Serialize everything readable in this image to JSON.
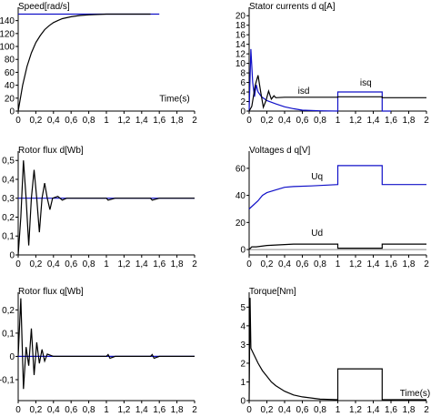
{
  "chart_data": [
    {
      "type": "line",
      "title": "Speed[rad/s]",
      "annotations": [
        {
          "text": "Time(s)",
          "x": 1.6,
          "y": 15
        }
      ],
      "xlim": [
        0,
        2
      ],
      "ylim": [
        0,
        155
      ],
      "x_ticks": [
        "0",
        "0,2",
        "0,4",
        "0,6",
        "0,8",
        "1",
        "1,2",
        "1,4",
        "1,6",
        "1,8",
        "2"
      ],
      "y_ticks": [
        {
          "v": 0,
          "label": "0"
        },
        {
          "v": 20,
          "label": "20"
        },
        {
          "v": 40,
          "label": "40"
        },
        {
          "v": 60,
          "label": "60"
        },
        {
          "v": 80,
          "label": "80"
        },
        {
          "v": 100,
          "label": "100"
        },
        {
          "v": 120,
          "label": "120"
        },
        {
          "v": 140,
          "label": "140"
        }
      ],
      "series": [
        {
          "color": "#1010c8",
          "points": [
            [
              0,
              150
            ],
            [
              1.6,
              150
            ]
          ]
        },
        {
          "color": "#000000",
          "points": [
            [
              0,
              0
            ],
            [
              0.05,
              40
            ],
            [
              0.1,
              69
            ],
            [
              0.15,
              90
            ],
            [
              0.2,
              106
            ],
            [
              0.25,
              117
            ],
            [
              0.3,
              126
            ],
            [
              0.35,
              132
            ],
            [
              0.4,
              137
            ],
            [
              0.45,
              140
            ],
            [
              0.5,
              143
            ],
            [
              0.6,
              146
            ],
            [
              0.7,
              148
            ],
            [
              0.8,
              149
            ],
            [
              1.0,
              150
            ],
            [
              1.5,
              150
            ]
          ]
        }
      ]
    },
    {
      "type": "line",
      "title": "Stator currents d q[A]",
      "annotations": [
        {
          "text": "isd",
          "x": 0.55,
          "y": 3.6
        },
        {
          "text": "isq",
          "x": 1.25,
          "y": 5.3
        }
      ],
      "xlim": [
        0,
        2
      ],
      "ylim": [
        0,
        21
      ],
      "x_ticks": [
        "0",
        "0,2",
        "0,4",
        "0,6",
        "0,8",
        "1",
        "1,2",
        "1,4",
        "1,6",
        "1,8",
        "2"
      ],
      "y_ticks": [
        {
          "v": 0,
          "label": "0"
        },
        {
          "v": 2,
          "label": "2"
        },
        {
          "v": 4,
          "label": "4"
        },
        {
          "v": 6,
          "label": "6"
        },
        {
          "v": 8,
          "label": "8"
        },
        {
          "v": 10,
          "label": "10"
        },
        {
          "v": 12,
          "label": "12"
        },
        {
          "v": 14,
          "label": "14"
        },
        {
          "v": 16,
          "label": "16"
        },
        {
          "v": 18,
          "label": "18"
        },
        {
          "v": 20,
          "label": "20"
        }
      ],
      "series": [
        {
          "color": "#1010c8",
          "points": [
            [
              0,
              0
            ],
            [
              0.02,
              13
            ],
            [
              0.04,
              6
            ],
            [
              0.06,
              3
            ],
            [
              0.08,
              5.5
            ],
            [
              0.1,
              4
            ],
            [
              0.14,
              3
            ],
            [
              0.2,
              2.2
            ],
            [
              0.3,
              1.5
            ],
            [
              0.4,
              0.9
            ],
            [
              0.5,
              0.5
            ],
            [
              0.6,
              0.2
            ],
            [
              0.8,
              0.05
            ],
            [
              1.0,
              0
            ],
            [
              1.0,
              4
            ],
            [
              1.5,
              4
            ],
            [
              1.5,
              0
            ],
            [
              1.6,
              0
            ]
          ]
        },
        {
          "color": "#000000",
          "points": [
            [
              0,
              0
            ],
            [
              0.03,
              1
            ],
            [
              0.07,
              5.5
            ],
            [
              0.1,
              7.5
            ],
            [
              0.13,
              4
            ],
            [
              0.16,
              0.8
            ],
            [
              0.19,
              2.2
            ],
            [
              0.22,
              4.2
            ],
            [
              0.25,
              2.5
            ],
            [
              0.28,
              3.2
            ],
            [
              0.3,
              2.8
            ],
            [
              0.4,
              2.9
            ],
            [
              1.0,
              2.9
            ],
            [
              1.0,
              3
            ],
            [
              1.5,
              3
            ],
            [
              1.5,
              2.8
            ],
            [
              2.0,
              2.8
            ]
          ]
        }
      ]
    },
    {
      "type": "line",
      "title": "Rotor flux d[Wb]",
      "xlim": [
        0,
        2
      ],
      "ylim": [
        0,
        0.53
      ],
      "x_ticks": [
        "0",
        "0,2",
        "0,4",
        "0,6",
        "0,8",
        "1",
        "1,2",
        "1,4",
        "1,6",
        "1,8",
        "2"
      ],
      "y_ticks": [
        {
          "v": 0,
          "label": "0"
        },
        {
          "v": 0.1,
          "label": "0,1"
        },
        {
          "v": 0.2,
          "label": "0,2"
        },
        {
          "v": 0.3,
          "label": "0,3"
        },
        {
          "v": 0.4,
          "label": "0,4"
        },
        {
          "v": 0.5,
          "label": "0,5"
        }
      ],
      "series": [
        {
          "color": "#1010c8",
          "points": [
            [
              0,
              0.3
            ],
            [
              2,
              0.3
            ]
          ]
        },
        {
          "color": "#000000",
          "points": [
            [
              0,
              0
            ],
            [
              0.03,
              0.2
            ],
            [
              0.06,
              0.5
            ],
            [
              0.09,
              0.3
            ],
            [
              0.12,
              0.05
            ],
            [
              0.15,
              0.3
            ],
            [
              0.18,
              0.45
            ],
            [
              0.21,
              0.3
            ],
            [
              0.24,
              0.12
            ],
            [
              0.27,
              0.3
            ],
            [
              0.3,
              0.38
            ],
            [
              0.33,
              0.3
            ],
            [
              0.36,
              0.24
            ],
            [
              0.39,
              0.3
            ],
            [
              0.45,
              0.31
            ],
            [
              0.5,
              0.29
            ],
            [
              0.55,
              0.3
            ],
            [
              1.0,
              0.3
            ],
            [
              1.02,
              0.29
            ],
            [
              1.1,
              0.3
            ],
            [
              1.5,
              0.3
            ],
            [
              1.52,
              0.29
            ],
            [
              1.6,
              0.3
            ],
            [
              2.0,
              0.3
            ]
          ]
        }
      ]
    },
    {
      "type": "line",
      "title": "Voltages d q[V]",
      "annotations": [
        {
          "text": "Uq",
          "x": 0.7,
          "y": 52
        },
        {
          "text": "Ud",
          "x": 0.7,
          "y": 10
        }
      ],
      "xlim": [
        0,
        2
      ],
      "ylim": [
        -4,
        70
      ],
      "x_ticks": [
        "0",
        "0,2",
        "0,4",
        "0,6",
        "0,8",
        "1",
        "1,2",
        "1,4",
        "1,6",
        "1,8",
        "2"
      ],
      "y_ticks": [
        {
          "v": 0,
          "label": "0"
        },
        {
          "v": 20,
          "label": "20"
        },
        {
          "v": 40,
          "label": "40"
        },
        {
          "v": 60,
          "label": "60"
        }
      ],
      "series": [
        {
          "color": "#a0a0a0",
          "points": [
            [
              0,
              0
            ],
            [
              2,
              0
            ]
          ]
        },
        {
          "color": "#1010c8",
          "points": [
            [
              0,
              30
            ],
            [
              0.05,
              33
            ],
            [
              0.1,
              36
            ],
            [
              0.15,
              40
            ],
            [
              0.2,
              42
            ],
            [
              0.3,
              44
            ],
            [
              0.4,
              46
            ],
            [
              0.5,
              46.5
            ],
            [
              0.7,
              47
            ],
            [
              1.0,
              48
            ],
            [
              1.0,
              62
            ],
            [
              1.5,
              62
            ],
            [
              1.5,
              48
            ],
            [
              2.0,
              48
            ]
          ]
        },
        {
          "color": "#000000",
          "points": [
            [
              0,
              0
            ],
            [
              0.03,
              2
            ],
            [
              0.08,
              2
            ],
            [
              0.2,
              3
            ],
            [
              0.5,
              4
            ],
            [
              1.0,
              4
            ],
            [
              1.0,
              1
            ],
            [
              1.5,
              1
            ],
            [
              1.5,
              4
            ],
            [
              2.0,
              4
            ]
          ]
        }
      ]
    },
    {
      "type": "line",
      "title": "Rotor flux q[Wb]",
      "xlim": [
        0,
        2
      ],
      "ylim": [
        -0.19,
        0.26
      ],
      "x_ticks": [
        "0",
        "0,2",
        "0,4",
        "0,6",
        "0,8",
        "1",
        "1,2",
        "1,4",
        "1,6",
        "1,8",
        "2"
      ],
      "y_ticks": [
        {
          "v": -0.1,
          "label": "-0,1"
        },
        {
          "v": 0,
          "label": "0"
        },
        {
          "v": 0.1,
          "label": "0,1"
        },
        {
          "v": 0.2,
          "label": "0,2"
        }
      ],
      "series": [
        {
          "color": "#1010c8",
          "points": [
            [
              0,
              0
            ],
            [
              2,
              0
            ]
          ]
        },
        {
          "color": "#000000",
          "points": [
            [
              0,
              0
            ],
            [
              0.03,
              0.25
            ],
            [
              0.06,
              -0.14
            ],
            [
              0.09,
              0.04
            ],
            [
              0.12,
              -0.04
            ],
            [
              0.15,
              0.12
            ],
            [
              0.18,
              -0.08
            ],
            [
              0.21,
              0.06
            ],
            [
              0.24,
              -0.03
            ],
            [
              0.27,
              0.03
            ],
            [
              0.3,
              -0.02
            ],
            [
              0.33,
              0.01
            ],
            [
              0.4,
              0
            ],
            [
              1.0,
              0
            ],
            [
              1.02,
              0.008
            ],
            [
              1.04,
              -0.008
            ],
            [
              1.1,
              0
            ],
            [
              1.5,
              0
            ],
            [
              1.52,
              0.008
            ],
            [
              1.54,
              -0.008
            ],
            [
              1.6,
              0
            ],
            [
              2,
              0
            ]
          ]
        }
      ]
    },
    {
      "type": "line",
      "title": "Torque[Nm]",
      "annotations": [
        {
          "text": "Time(s)",
          "x": 1.7,
          "y": 0.25
        }
      ],
      "xlim": [
        0,
        2
      ],
      "ylim": [
        0,
        5.6
      ],
      "x_ticks": [
        "0",
        "0,2",
        "0,4",
        "0,6",
        "0,8",
        "1",
        "1,2",
        "1,4",
        "1,6",
        "1,8",
        "2"
      ],
      "y_ticks": [
        {
          "v": 0,
          "label": "0"
        },
        {
          "v": 1,
          "label": "1"
        },
        {
          "v": 2,
          "label": "2"
        },
        {
          "v": 3,
          "label": "3"
        },
        {
          "v": 4,
          "label": "4"
        },
        {
          "v": 5,
          "label": "5"
        }
      ],
      "series": [
        {
          "color": "#000000",
          "points": [
            [
              0,
              0
            ],
            [
              0.01,
              5.5
            ],
            [
              0.02,
              2.8
            ],
            [
              0.05,
              2.5
            ],
            [
              0.1,
              2.0
            ],
            [
              0.15,
              1.6
            ],
            [
              0.2,
              1.3
            ],
            [
              0.25,
              1.0
            ],
            [
              0.3,
              0.8
            ],
            [
              0.4,
              0.5
            ],
            [
              0.5,
              0.3
            ],
            [
              0.6,
              0.2
            ],
            [
              0.8,
              0.08
            ],
            [
              1.0,
              0.05
            ],
            [
              1.0,
              1.7
            ],
            [
              1.5,
              1.7
            ],
            [
              1.5,
              0.05
            ],
            [
              2.0,
              0.05
            ]
          ]
        }
      ]
    }
  ]
}
